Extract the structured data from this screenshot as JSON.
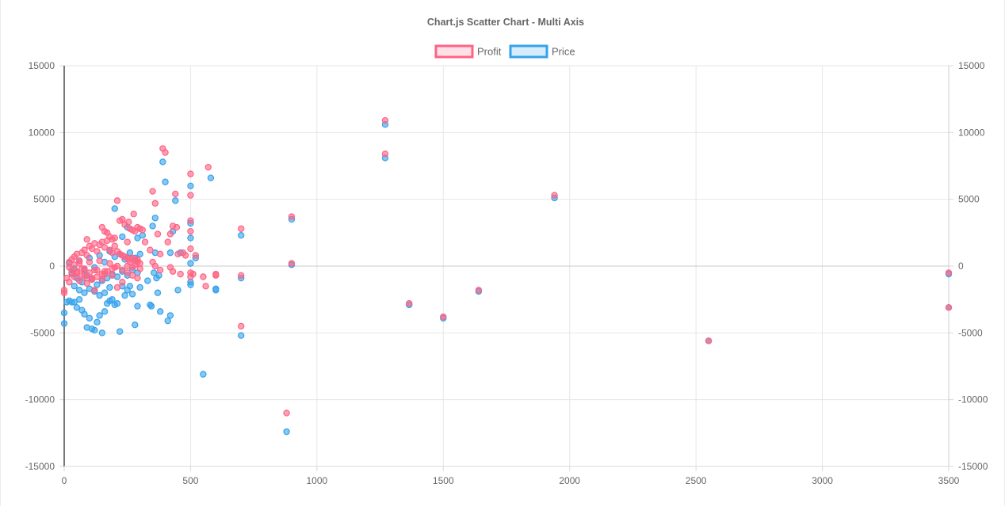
{
  "chart_data": {
    "type": "scatter",
    "title": "Chart.js Scatter Chart - Multi Axis",
    "legend_position": "top-center",
    "grid": true,
    "x_axis": {
      "min": 0,
      "max": 3500,
      "ticks": [
        "0",
        "500",
        "1000",
        "1500",
        "2000",
        "2500",
        "3000",
        "3500"
      ]
    },
    "y_axis_left": {
      "min": -15000,
      "max": 15000,
      "ticks": [
        "15000",
        "10000",
        "5000",
        "0",
        "-5000",
        "-10000",
        "-15000"
      ]
    },
    "y_axis_right": {
      "min": -15000,
      "max": 15000,
      "ticks": [
        "15000",
        "10000",
        "5000",
        "0",
        "-5000",
        "-10000",
        "-15000"
      ]
    },
    "series": [
      {
        "name": "Profit",
        "color": "#ff6384",
        "fill": "rgba(255,99,132,0.6)",
        "legend_fill": "#ffe0e6",
        "points": [
          [
            0,
            -2000
          ],
          [
            0,
            -1800
          ],
          [
            10,
            -900
          ],
          [
            20,
            -1200
          ],
          [
            30,
            -600
          ],
          [
            40,
            -800
          ],
          [
            50,
            -400
          ],
          [
            60,
            -1100
          ],
          [
            70,
            -200
          ],
          [
            80,
            -700
          ],
          [
            90,
            -1300
          ],
          [
            100,
            -500
          ],
          [
            110,
            -900
          ],
          [
            120,
            -1800
          ],
          [
            130,
            -300
          ],
          [
            150,
            -1000
          ],
          [
            160,
            -600
          ],
          [
            190,
            -700
          ],
          [
            210,
            -1600
          ],
          [
            230,
            -1200
          ],
          [
            20,
            300
          ],
          [
            30,
            500
          ],
          [
            40,
            700
          ],
          [
            50,
            900
          ],
          [
            60,
            400
          ],
          [
            70,
            1000
          ],
          [
            80,
            1200
          ],
          [
            90,
            800
          ],
          [
            100,
            1500
          ],
          [
            110,
            1300
          ],
          [
            120,
            1700
          ],
          [
            130,
            1100
          ],
          [
            140,
            1600
          ],
          [
            150,
            1800
          ],
          [
            160,
            1400
          ],
          [
            170,
            1900
          ],
          [
            180,
            1200
          ],
          [
            190,
            1000
          ],
          [
            200,
            1500
          ],
          [
            210,
            1100
          ],
          [
            220,
            900
          ],
          [
            230,
            800
          ],
          [
            240,
            700
          ],
          [
            250,
            600
          ],
          [
            260,
            500
          ],
          [
            270,
            600
          ],
          [
            280,
            400
          ],
          [
            290,
            300
          ],
          [
            300,
            200
          ],
          [
            20,
            -100
          ],
          [
            40,
            100
          ],
          [
            60,
            200
          ],
          [
            80,
            -200
          ],
          [
            100,
            300
          ],
          [
            120,
            -300
          ],
          [
            140,
            400
          ],
          [
            160,
            -400
          ],
          [
            180,
            200
          ],
          [
            200,
            -100
          ],
          [
            30,
            -300
          ],
          [
            50,
            -500
          ],
          [
            70,
            -700
          ],
          [
            90,
            -900
          ],
          [
            110,
            -1000
          ],
          [
            130,
            -800
          ],
          [
            150,
            -600
          ],
          [
            170,
            -400
          ],
          [
            190,
            -200
          ],
          [
            210,
            0
          ],
          [
            230,
            -300
          ],
          [
            250,
            -500
          ],
          [
            270,
            -700
          ],
          [
            290,
            -900
          ],
          [
            250,
            0
          ],
          [
            260,
            300
          ],
          [
            270,
            -100
          ],
          [
            280,
            100
          ],
          [
            290,
            500
          ],
          [
            300,
            -200
          ],
          [
            90,
            2000
          ],
          [
            150,
            2900
          ],
          [
            160,
            2600
          ],
          [
            170,
            2500
          ],
          [
            180,
            2200
          ],
          [
            190,
            2000
          ],
          [
            200,
            2100
          ],
          [
            210,
            4900
          ],
          [
            220,
            3400
          ],
          [
            230,
            3500
          ],
          [
            240,
            3100
          ],
          [
            250,
            1800
          ],
          [
            255,
            3300
          ],
          [
            260,
            2800
          ],
          [
            270,
            2700
          ],
          [
            275,
            3900
          ],
          [
            280,
            2600
          ],
          [
            290,
            2900
          ],
          [
            300,
            2800
          ],
          [
            310,
            2700
          ],
          [
            320,
            1800
          ],
          [
            340,
            1200
          ],
          [
            350,
            5600
          ],
          [
            360,
            4700
          ],
          [
            370,
            2400
          ],
          [
            380,
            900
          ],
          [
            390,
            8800
          ],
          [
            400,
            8500
          ],
          [
            410,
            1800
          ],
          [
            420,
            2400
          ],
          [
            430,
            3000
          ],
          [
            440,
            5400
          ],
          [
            445,
            2900
          ],
          [
            450,
            900
          ],
          [
            460,
            -600
          ],
          [
            470,
            1000
          ],
          [
            480,
            800
          ],
          [
            500,
            6900
          ],
          [
            500,
            5300
          ],
          [
            500,
            3400
          ],
          [
            500,
            2600
          ],
          [
            500,
            1300
          ],
          [
            500,
            -800
          ],
          [
            500,
            -500
          ],
          [
            510,
            -600
          ],
          [
            520,
            800
          ],
          [
            550,
            -800
          ],
          [
            560,
            -1500
          ],
          [
            570,
            7400
          ],
          [
            600,
            -600
          ],
          [
            600,
            -700
          ],
          [
            700,
            2800
          ],
          [
            700,
            -700
          ],
          [
            700,
            -4500
          ],
          [
            880,
            -11000
          ],
          [
            900,
            3700
          ],
          [
            900,
            200
          ],
          [
            1270,
            10900
          ],
          [
            1270,
            8400
          ],
          [
            1365,
            -2800
          ],
          [
            1500,
            -3800
          ],
          [
            1640,
            -1800
          ],
          [
            1940,
            5300
          ],
          [
            2550,
            -5600
          ],
          [
            3500,
            -500
          ],
          [
            3500,
            -3100
          ],
          [
            360,
            0
          ],
          [
            380,
            -300
          ],
          [
            420,
            -100
          ],
          [
            430,
            -400
          ],
          [
            350,
            300
          ]
        ]
      },
      {
        "name": "Price",
        "color": "#36a2eb",
        "fill": "rgba(54,162,235,0.6)",
        "legend_fill": "#d6ecfa",
        "points": [
          [
            0,
            -3500
          ],
          [
            0,
            -4300
          ],
          [
            10,
            -2700
          ],
          [
            20,
            -2600
          ],
          [
            30,
            -2700
          ],
          [
            40,
            -2700
          ],
          [
            50,
            -3100
          ],
          [
            60,
            -2500
          ],
          [
            70,
            -3300
          ],
          [
            80,
            -3600
          ],
          [
            90,
            -4600
          ],
          [
            100,
            -3900
          ],
          [
            110,
            -4700
          ],
          [
            120,
            -4800
          ],
          [
            130,
            -4200
          ],
          [
            140,
            -3700
          ],
          [
            150,
            -5000
          ],
          [
            160,
            -3400
          ],
          [
            170,
            -2800
          ],
          [
            180,
            -2600
          ],
          [
            190,
            -2500
          ],
          [
            200,
            -2900
          ],
          [
            210,
            -2800
          ],
          [
            220,
            -4900
          ],
          [
            230,
            -1500
          ],
          [
            240,
            -2200
          ],
          [
            250,
            -1800
          ],
          [
            260,
            -1500
          ],
          [
            270,
            -2100
          ],
          [
            280,
            -4400
          ],
          [
            290,
            -3000
          ],
          [
            300,
            -1600
          ],
          [
            40,
            -1500
          ],
          [
            60,
            -1800
          ],
          [
            80,
            -2000
          ],
          [
            100,
            -1700
          ],
          [
            120,
            -1900
          ],
          [
            140,
            -2200
          ],
          [
            160,
            -2000
          ],
          [
            180,
            -1600
          ],
          [
            30,
            -500
          ],
          [
            50,
            -900
          ],
          [
            70,
            -1200
          ],
          [
            90,
            -700
          ],
          [
            110,
            -1000
          ],
          [
            130,
            -1400
          ],
          [
            150,
            -1100
          ],
          [
            170,
            -900
          ],
          [
            190,
            -600
          ],
          [
            210,
            -800
          ],
          [
            230,
            -400
          ],
          [
            250,
            -700
          ],
          [
            270,
            -300
          ],
          [
            290,
            -500
          ],
          [
            20,
            200
          ],
          [
            40,
            -200
          ],
          [
            60,
            400
          ],
          [
            80,
            -300
          ],
          [
            100,
            600
          ],
          [
            120,
            -100
          ],
          [
            140,
            800
          ],
          [
            160,
            300
          ],
          [
            180,
            1100
          ],
          [
            200,
            700
          ],
          [
            220,
            900
          ],
          [
            240,
            500
          ],
          [
            260,
            1000
          ],
          [
            280,
            600
          ],
          [
            300,
            900
          ],
          [
            200,
            4300
          ],
          [
            230,
            2200
          ],
          [
            250,
            2900
          ],
          [
            290,
            2100
          ],
          [
            310,
            2300
          ],
          [
            350,
            3000
          ],
          [
            360,
            3600
          ],
          [
            360,
            1000
          ],
          [
            370,
            -2000
          ],
          [
            380,
            -3400
          ],
          [
            390,
            7800
          ],
          [
            400,
            6300
          ],
          [
            410,
            -4100
          ],
          [
            420,
            -3700
          ],
          [
            420,
            1000
          ],
          [
            430,
            2600
          ],
          [
            440,
            4900
          ],
          [
            450,
            -1800
          ],
          [
            460,
            1000
          ],
          [
            500,
            6000
          ],
          [
            500,
            3200
          ],
          [
            500,
            2100
          ],
          [
            500,
            200
          ],
          [
            500,
            -1400
          ],
          [
            500,
            -1200
          ],
          [
            520,
            600
          ],
          [
            550,
            -8100
          ],
          [
            580,
            6600
          ],
          [
            600,
            -1700
          ],
          [
            600,
            -1800
          ],
          [
            700,
            2300
          ],
          [
            700,
            -900
          ],
          [
            700,
            -5200
          ],
          [
            880,
            -12400
          ],
          [
            900,
            3500
          ],
          [
            900,
            100
          ],
          [
            1270,
            10600
          ],
          [
            1270,
            8100
          ],
          [
            1365,
            -2900
          ],
          [
            1500,
            -3900
          ],
          [
            1640,
            -1900
          ],
          [
            1940,
            5100
          ],
          [
            2550,
            -5600
          ],
          [
            3500,
            -600
          ],
          [
            3500,
            -3100
          ],
          [
            330,
            -1100
          ],
          [
            340,
            -2900
          ],
          [
            345,
            -3000
          ],
          [
            355,
            -500
          ],
          [
            365,
            -900
          ],
          [
            375,
            -700
          ]
        ]
      }
    ]
  }
}
